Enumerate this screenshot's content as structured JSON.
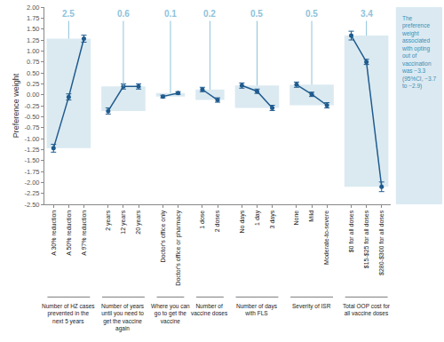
{
  "chart_data": {
    "type": "line",
    "y_label": "Preference weight",
    "ylim": [
      -2.5,
      2.0
    ],
    "yticks": [
      {
        "value": 2.0,
        "label": "2.00"
      },
      {
        "value": 1.75,
        "label": "1.75"
      },
      {
        "value": 1.5,
        "label": "1.50"
      },
      {
        "value": 1.25,
        "label": "1.25"
      },
      {
        "value": 1.0,
        "label": "1.00"
      },
      {
        "value": 0.75,
        "label": "0.75"
      },
      {
        "value": 0.5,
        "label": "0.50"
      },
      {
        "value": 0.25,
        "label": "0.25"
      },
      {
        "value": 0,
        "label": "0.00"
      },
      {
        "value": -0.25,
        "label": "-0.25"
      },
      {
        "value": -0.5,
        "label": "-0.50"
      },
      {
        "value": -0.75,
        "label": "-0.75"
      },
      {
        "value": -1.0,
        "label": "-1.00"
      },
      {
        "value": -1.25,
        "label": "-1.25"
      },
      {
        "value": -1.5,
        "label": "-1.50"
      },
      {
        "value": -1.75,
        "label": "-1.75"
      },
      {
        "value": -2.0,
        "label": "-2.00"
      },
      {
        "value": -2.25,
        "label": "-2.25"
      },
      {
        "value": -2.5,
        "label": "-2.50"
      }
    ],
    "grid": false,
    "color": "#1f5b8e",
    "marker": "circle",
    "annotations": [
      "The preference weight associated with opting out of vaccination was −3.3 (95%CI, −3.7 to −2.9)"
    ],
    "groups": [
      {
        "label": "Number of HZ cases prevented in the next 5 years",
        "importance": 2.5,
        "categories": [
          "A 30% reduction",
          "A 50% reduction",
          "A 97% reduction"
        ],
        "values": [
          -1.22,
          -0.05,
          1.28
        ],
        "errors": [
          0.09,
          0.07,
          0.08
        ]
      },
      {
        "label": "Number of years until you need to get the vaccine again",
        "importance": 0.6,
        "categories": [
          "2 years",
          "12 years",
          "20 years"
        ],
        "values": [
          -0.37,
          0.19,
          0.19
        ],
        "errors": [
          0.07,
          0.06,
          0.06
        ]
      },
      {
        "label": "Where you can go to get the vaccine",
        "importance": 0.1,
        "categories": [
          "Doctor's office only",
          "Doctor's office or pharmacy"
        ],
        "values": [
          -0.04,
          0.04
        ],
        "errors": [
          0.03,
          0.03
        ]
      },
      {
        "label": "Number of vaccine doses",
        "importance": 0.2,
        "categories": [
          "1 dose",
          "2 doses"
        ],
        "values": [
          0.12,
          -0.12
        ],
        "errors": [
          0.05,
          0.05
        ]
      },
      {
        "label": "Number of days with FLS",
        "importance": 0.5,
        "categories": [
          "No days",
          "1 day",
          "3 days"
        ],
        "values": [
          0.21,
          0.08,
          -0.3
        ],
        "errors": [
          0.06,
          0.05,
          0.06
        ]
      },
      {
        "label": "Severity of ISR",
        "importance": 0.5,
        "categories": [
          "None",
          "Mild",
          "Moderate-to-severe"
        ],
        "values": [
          0.23,
          0.01,
          -0.24
        ],
        "errors": [
          0.06,
          0.05,
          0.06
        ]
      },
      {
        "label": "Total OOP cost for all vaccine doses",
        "importance": 3.4,
        "categories": [
          "$0 for all doses",
          "$15-$25 for all doses",
          "$280-$300 for all doses"
        ],
        "values": [
          1.35,
          0.75,
          -2.1
        ],
        "errors": [
          0.1,
          0.06,
          0.11
        ]
      }
    ]
  }
}
